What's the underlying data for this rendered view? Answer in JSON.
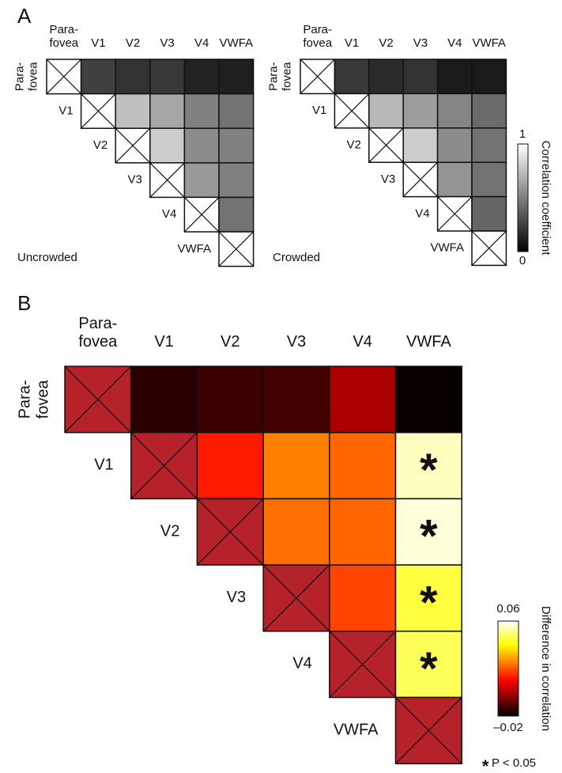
{
  "chart_data": [
    {
      "type": "heatmap",
      "panel": "A",
      "annotation": "Uncrowded",
      "colormap": "gray",
      "diagonal_color": "#ffffff",
      "categories": [
        [
          "Para-",
          "fovea"
        ],
        [
          "V1"
        ],
        [
          "V2"
        ],
        [
          "V3"
        ],
        [
          "V4"
        ],
        [
          "VWFA"
        ]
      ],
      "zlim": [
        0,
        1
      ],
      "values": [
        [
          null,
          0.25,
          0.2,
          0.22,
          0.13,
          0.12
        ],
        [
          null,
          null,
          0.75,
          0.65,
          0.5,
          0.45
        ],
        [
          null,
          null,
          null,
          0.8,
          0.55,
          0.5
        ],
        [
          null,
          null,
          null,
          null,
          0.6,
          0.5
        ],
        [
          null,
          null,
          null,
          null,
          null,
          0.45
        ],
        [
          null,
          null,
          null,
          null,
          null,
          null
        ]
      ]
    },
    {
      "type": "heatmap",
      "annotation": "Crowded",
      "colormap": "gray",
      "diagonal_color": "#ffffff",
      "categories": [
        [
          "Para-",
          "fovea"
        ],
        [
          "V1"
        ],
        [
          "V2"
        ],
        [
          "V3"
        ],
        [
          "V4"
        ],
        [
          "VWFA"
        ]
      ],
      "zlim": [
        0,
        1
      ],
      "zticks": [
        0,
        1
      ],
      "colorbar_label": "Correlation coefficient",
      "values": [
        [
          null,
          0.22,
          0.17,
          0.2,
          0.1,
          0.1
        ],
        [
          null,
          null,
          0.72,
          0.62,
          0.52,
          0.42
        ],
        [
          null,
          null,
          null,
          0.8,
          0.55,
          0.45
        ],
        [
          null,
          null,
          null,
          null,
          0.58,
          0.45
        ],
        [
          null,
          null,
          null,
          null,
          null,
          0.4
        ],
        [
          null,
          null,
          null,
          null,
          null,
          null
        ]
      ]
    },
    {
      "type": "heatmap",
      "panel": "B",
      "colormap": "hot",
      "diagonal_color": "#b5222a",
      "categories": [
        [
          "Para-",
          "fovea"
        ],
        [
          "V1"
        ],
        [
          "V2"
        ],
        [
          "V3"
        ],
        [
          "V4"
        ],
        [
          "VWFA"
        ]
      ],
      "zlim": [
        -0.02,
        0.06
      ],
      "zticks": [
        {
          "value": -0.02,
          "label": "–0.02"
        },
        0.06
      ],
      "colorbar_label": "Difference in correlation",
      "values": [
        [
          null,
          -0.015,
          -0.013,
          -0.012,
          0.0,
          -0.019
        ],
        [
          null,
          null,
          0.013,
          0.025,
          0.022,
          0.055
        ],
        [
          null,
          null,
          null,
          0.023,
          0.022,
          0.057
        ],
        [
          null,
          null,
          null,
          null,
          0.018,
          0.045
        ],
        [
          null,
          null,
          null,
          null,
          null,
          0.047
        ],
        [
          null,
          null,
          null,
          null,
          null,
          null
        ]
      ],
      "significant": [
        [
          false,
          false,
          false,
          false,
          false,
          false
        ],
        [
          false,
          false,
          false,
          false,
          false,
          true
        ],
        [
          false,
          false,
          false,
          false,
          false,
          true
        ],
        [
          false,
          false,
          false,
          false,
          false,
          true
        ],
        [
          false,
          false,
          false,
          false,
          false,
          true
        ],
        [
          false,
          false,
          false,
          false,
          false,
          false
        ]
      ],
      "significance_marker": "*",
      "significance_note": "P < 0.05"
    }
  ]
}
